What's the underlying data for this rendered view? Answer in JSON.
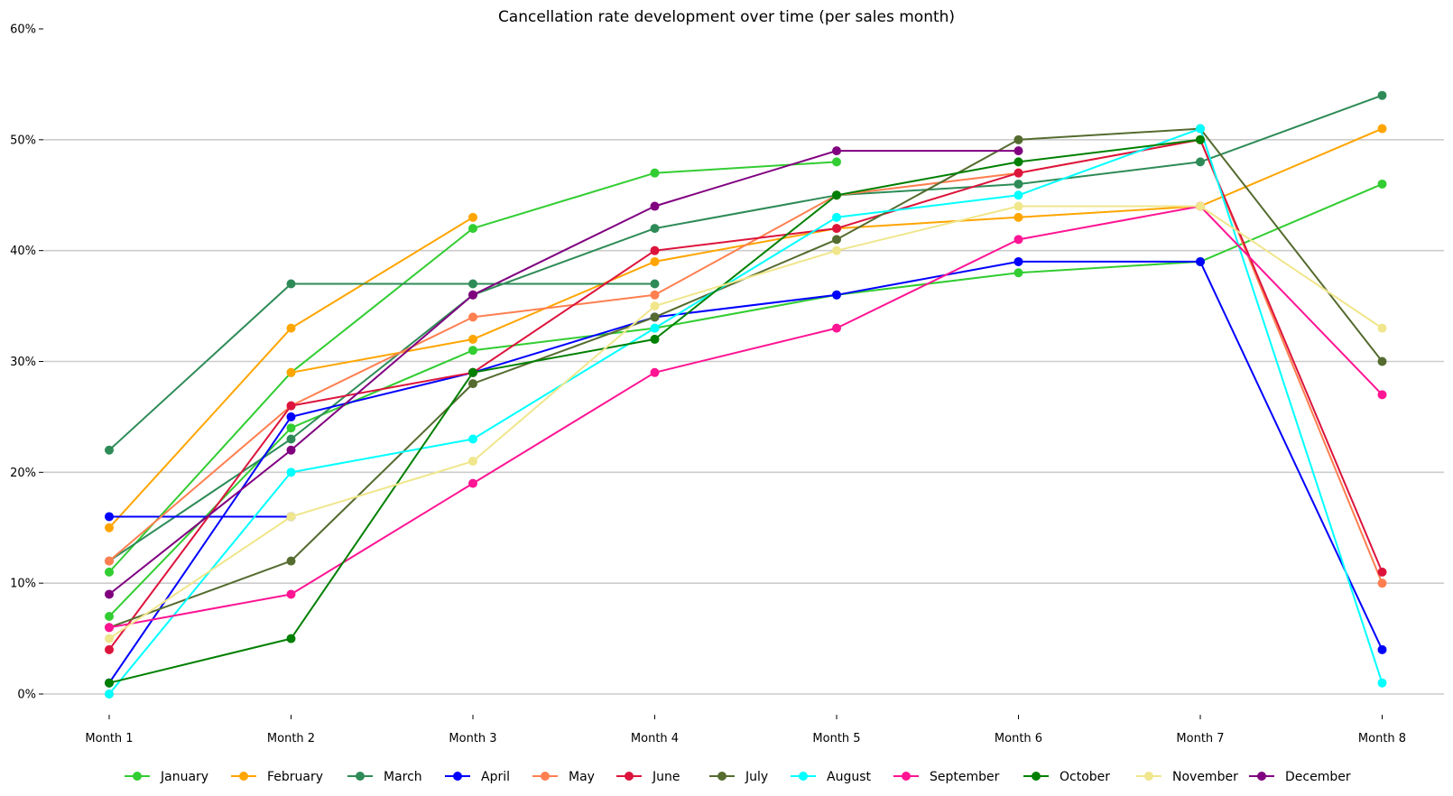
{
  "chart_data": {
    "type": "line",
    "title": "Cancellation rate development over time (per sales month)",
    "xlabel": "",
    "ylabel": "",
    "categories": [
      "Month 1",
      "Month 2",
      "Month 3",
      "Month 4",
      "Month 5",
      "Month 6",
      "Month 7",
      "Month 8"
    ],
    "y_ticks": [
      0,
      10,
      20,
      30,
      40,
      50,
      60
    ],
    "y_tick_labels": [
      "0%",
      "10%",
      "20%",
      "30%",
      "40%",
      "50%",
      "60%"
    ],
    "ylim": [
      0,
      60
    ],
    "y_unit": "%",
    "grid": "horizontal",
    "legend_position": "bottom",
    "series": [
      {
        "name": "January",
        "color": "#32cd32",
        "values": [
          7,
          24,
          31,
          33,
          36,
          38,
          39,
          46
        ]
      },
      {
        "name": "January",
        "color": "#32cd32",
        "values": [
          11,
          29,
          42,
          47,
          48,
          null,
          null,
          null
        ]
      },
      {
        "name": "February",
        "color": "#ffa500",
        "values": [
          15,
          33,
          43,
          null,
          null,
          null,
          null,
          null
        ]
      },
      {
        "name": "February",
        "color": "#ffa500",
        "values": [
          null,
          29,
          32,
          39,
          42,
          43,
          44,
          51
        ]
      },
      {
        "name": "March",
        "color": "#2e8b57",
        "values": [
          22,
          37,
          37,
          37,
          null,
          null,
          null,
          null
        ]
      },
      {
        "name": "March",
        "color": "#2e8b57",
        "values": [
          12,
          23,
          36,
          42,
          45,
          46,
          48,
          54
        ]
      },
      {
        "name": "April",
        "color": "#0000ff",
        "values": [
          16,
          16,
          null,
          null,
          null,
          null,
          null,
          null
        ]
      },
      {
        "name": "April",
        "color": "#0000ff",
        "values": [
          1,
          25,
          29,
          34,
          36,
          39,
          39,
          4
        ]
      },
      {
        "name": "May",
        "color": "#ff7f50",
        "values": [
          12,
          26,
          34,
          36,
          45,
          47,
          50,
          10
        ]
      },
      {
        "name": "May",
        "color": "#ff7f50",
        "values": [
          0,
          null,
          null,
          null,
          null,
          null,
          null,
          null
        ]
      },
      {
        "name": "June",
        "color": "#dc143c",
        "values": [
          4,
          26,
          29,
          40,
          42,
          47,
          50,
          11
        ]
      },
      {
        "name": "July",
        "color": "#556b2f",
        "values": [
          6,
          12,
          28,
          34,
          41,
          50,
          51,
          30
        ]
      },
      {
        "name": "August",
        "color": "#00ffff",
        "values": [
          0,
          20,
          23,
          33,
          43,
          45,
          51,
          1
        ]
      },
      {
        "name": "September",
        "color": "#ff1493",
        "values": [
          6,
          9,
          19,
          29,
          33,
          41,
          44,
          27
        ]
      },
      {
        "name": "October",
        "color": "#008000",
        "values": [
          1,
          5,
          29,
          32,
          45,
          48,
          50,
          null
        ]
      },
      {
        "name": "November",
        "color": "#f0e68c",
        "values": [
          5,
          16,
          21,
          35,
          40,
          44,
          44,
          33
        ]
      },
      {
        "name": "December",
        "color": "#800080",
        "values": [
          9,
          22,
          36,
          44,
          49,
          49,
          null,
          null
        ]
      }
    ],
    "legend": [
      {
        "name": "January",
        "color": "#32cd32"
      },
      {
        "name": "February",
        "color": "#ffa500"
      },
      {
        "name": "March",
        "color": "#2e8b57"
      },
      {
        "name": "April",
        "color": "#0000ff"
      },
      {
        "name": "May",
        "color": "#ff7f50"
      },
      {
        "name": "June",
        "color": "#dc143c"
      },
      {
        "name": "July",
        "color": "#556b2f"
      },
      {
        "name": "August",
        "color": "#00ffff"
      },
      {
        "name": "September",
        "color": "#ff1493"
      },
      {
        "name": "October",
        "color": "#008000"
      },
      {
        "name": "November",
        "color": "#f0e68c"
      },
      {
        "name": "December",
        "color": "#800080"
      }
    ]
  }
}
